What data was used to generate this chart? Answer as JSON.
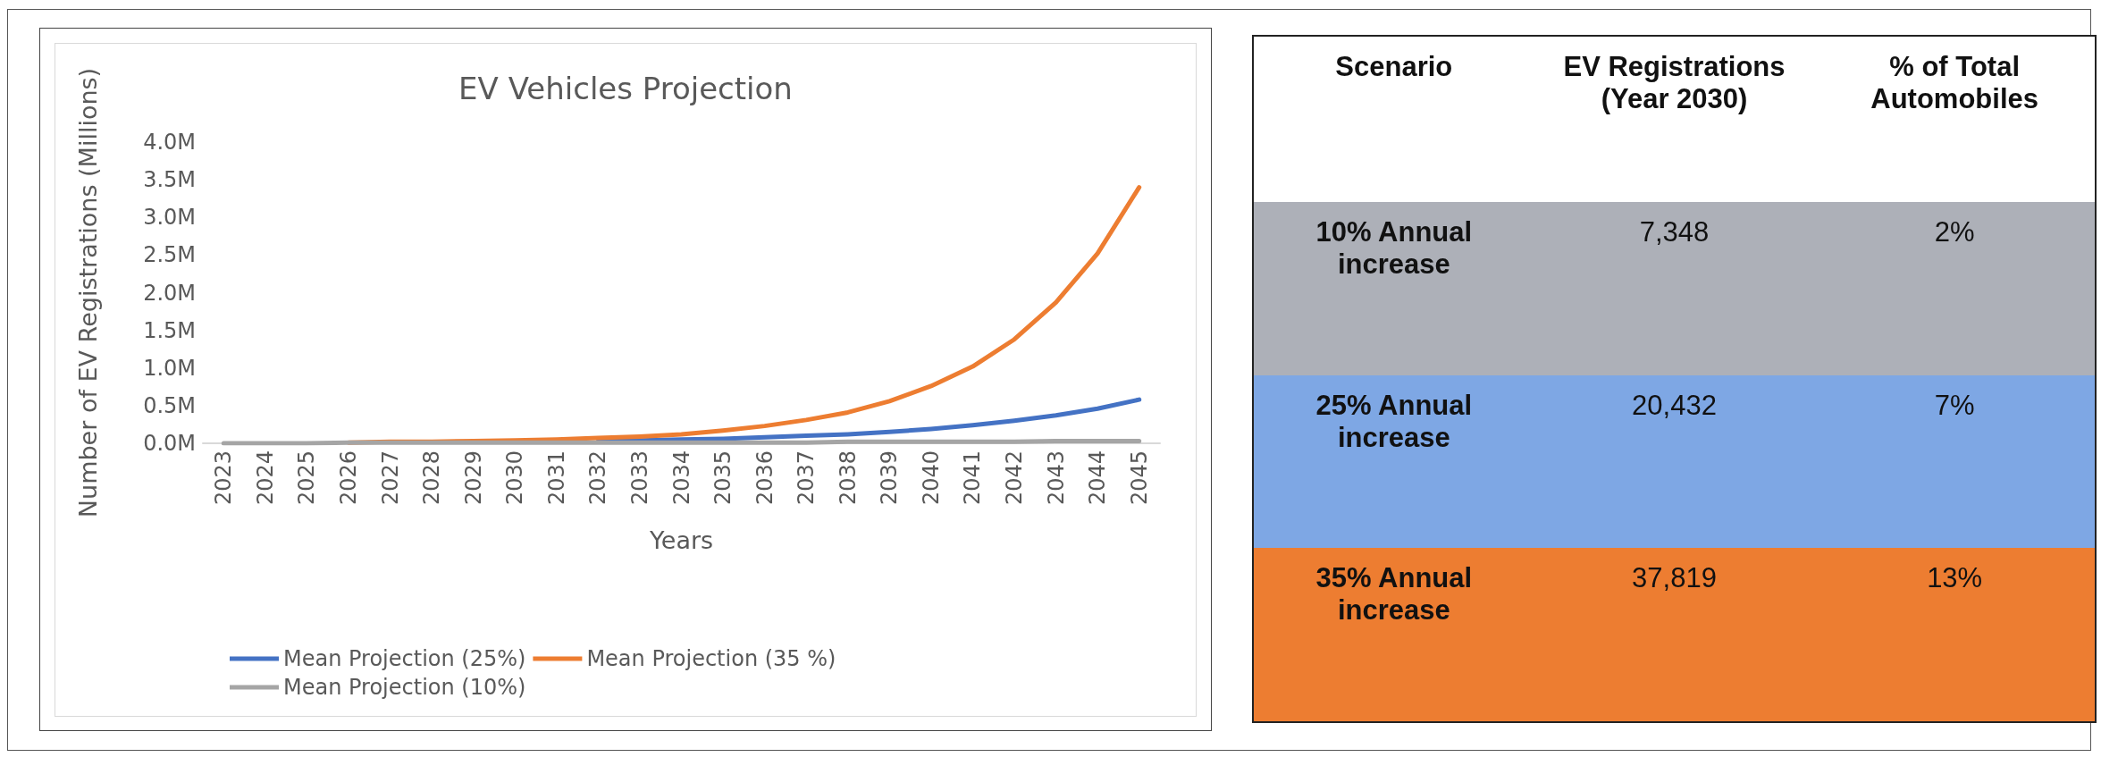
{
  "chart_data": [
    {
      "type": "line",
      "title": "EV Vehicles Projection",
      "xlabel": "Years",
      "ylabel": "Number of EV Registrations (Millions)",
      "categories": [
        "2023",
        "2024",
        "2025",
        "2026",
        "2027",
        "2028",
        "2029",
        "2030",
        "2031",
        "2032",
        "2033",
        "2034",
        "2035",
        "2036",
        "2037",
        "2038",
        "2039",
        "2040",
        "2041",
        "2042",
        "2043",
        "2044",
        "2045"
      ],
      "series": [
        {
          "name": "Mean Projection (25%)",
          "color": "#4472c4",
          "values": [
            null,
            null,
            null,
            null,
            null,
            null,
            null,
            null,
            null,
            0.03,
            0.04,
            0.05,
            0.06,
            0.08,
            0.1,
            0.12,
            0.15,
            0.19,
            0.24,
            0.3,
            0.37,
            0.46,
            0.58
          ]
        },
        {
          "name": "Mean Projection (35 %)",
          "color": "#ed7d31",
          "values": [
            null,
            null,
            null,
            0.01,
            0.02,
            0.02,
            0.03,
            0.04,
            0.05,
            0.07,
            0.09,
            0.12,
            0.17,
            0.23,
            0.31,
            0.41,
            0.56,
            0.76,
            1.02,
            1.38,
            1.87,
            2.52,
            3.4
          ]
        },
        {
          "name": "Mean Projection (10%)",
          "color": "#a5a5a5",
          "values": [
            0,
            0,
            0,
            0.01,
            0.01,
            0.01,
            0.01,
            0.01,
            0.01,
            0.01,
            0.01,
            0.01,
            0.01,
            0.01,
            0.01,
            0.02,
            0.02,
            0.02,
            0.02,
            0.02,
            0.03,
            0.03,
            0.03
          ]
        }
      ],
      "ylim": [
        0,
        4
      ],
      "yticks": [
        {
          "value": 0,
          "label": "0.0M"
        },
        {
          "value": 0.5,
          "label": "0.5M"
        },
        {
          "value": 1,
          "label": "1.0M"
        },
        {
          "value": 1.5,
          "label": "1.5M"
        },
        {
          "value": 2,
          "label": "2.0M"
        },
        {
          "value": 2.5,
          "label": "2.5M"
        },
        {
          "value": 3,
          "label": "3.0M"
        },
        {
          "value": 3.5,
          "label": "3.5M"
        },
        {
          "value": 4,
          "label": "4.0M"
        }
      ],
      "legend": "bottom",
      "line_style": "solid"
    },
    {
      "type": "other",
      "annotations": [
        "Scenario",
        "EV Registrations (Year 2030)",
        "% of Total Automobiles",
        "10% Annual increase",
        "7,348",
        "2%",
        "25% Annual increase",
        "20,432",
        "7%",
        "35% Annual increase",
        "37,819",
        "13%"
      ],
      "colors": [
        "#ffffff",
        "#adb0b8",
        "#7ea7e4",
        "#ed7d31"
      ]
    }
  ]
}
